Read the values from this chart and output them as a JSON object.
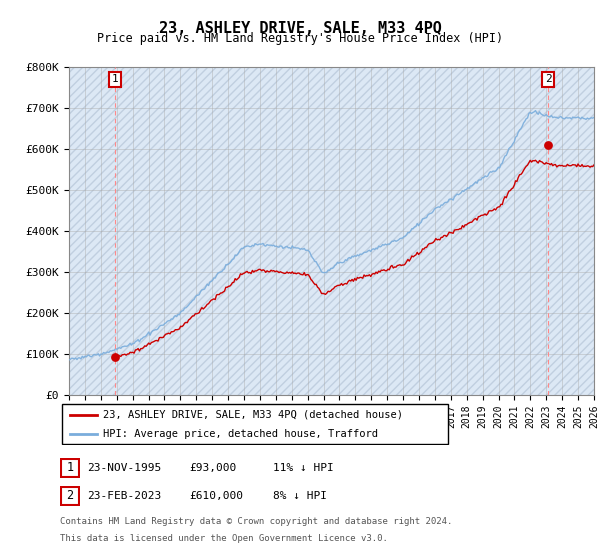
{
  "title": "23, ASHLEY DRIVE, SALE, M33 4PQ",
  "subtitle": "Price paid vs. HM Land Registry's House Price Index (HPI)",
  "ylim": [
    0,
    800000
  ],
  "yticks": [
    0,
    100000,
    200000,
    300000,
    400000,
    500000,
    600000,
    700000,
    800000
  ],
  "ytick_labels": [
    "£0",
    "£100K",
    "£200K",
    "£300K",
    "£400K",
    "£500K",
    "£600K",
    "£700K",
    "£800K"
  ],
  "xlim_start": 1993,
  "xlim_end": 2026,
  "sale1_date": 1995.9,
  "sale1_price": 93000,
  "sale1_label": "1",
  "sale2_date": 2023.12,
  "sale2_price": 610000,
  "sale2_label": "2",
  "legend_line1": "23, ASHLEY DRIVE, SALE, M33 4PQ (detached house)",
  "legend_line2": "HPI: Average price, detached house, Trafford",
  "table_row1": [
    "1",
    "23-NOV-1995",
    "£93,000",
    "11% ↓ HPI"
  ],
  "table_row2": [
    "2",
    "23-FEB-2023",
    "£610,000",
    "8% ↓ HPI"
  ],
  "footnote1": "Contains HM Land Registry data © Crown copyright and database right 2024.",
  "footnote2": "This data is licensed under the Open Government Licence v3.0.",
  "hpi_color": "#7aaddc",
  "price_color": "#cc0000",
  "bg_color": "#dce8f5",
  "hatch_color": "#c0cfe0",
  "sale_marker_color": "#cc0000",
  "vline_color": "#ff8888",
  "label_box_color": "#cc0000",
  "grid_color": "#aaaaaa"
}
